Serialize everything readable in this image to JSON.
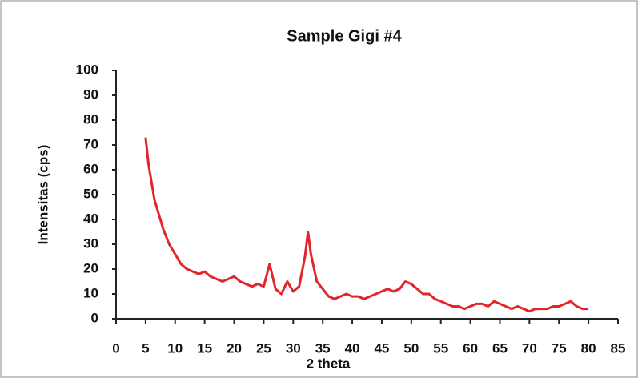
{
  "chart_data": {
    "type": "line",
    "title": "Sample Gigi #4",
    "x_label": "2 theta",
    "y_label": "Intensitas (cps)",
    "x": [
      5,
      5.5,
      6,
      6.5,
      7,
      7.5,
      8,
      9,
      10,
      11,
      12,
      13,
      14,
      15,
      16,
      17,
      18,
      19,
      20,
      21,
      22,
      23,
      24,
      25,
      26,
      27,
      28,
      29,
      30,
      31,
      32,
      32.5,
      33,
      34,
      35,
      36,
      37,
      38,
      39,
      40,
      41,
      42,
      43,
      44,
      45,
      46,
      47,
      48,
      49,
      50,
      51,
      52,
      53,
      54,
      55,
      56,
      57,
      58,
      59,
      60,
      61,
      62,
      63,
      64,
      65,
      66,
      67,
      68,
      69,
      70,
      71,
      72,
      73,
      74,
      75,
      76,
      77,
      78,
      79,
      80
    ],
    "values": [
      73,
      62,
      55,
      48,
      44,
      40,
      36,
      30,
      26,
      22,
      20,
      19,
      18,
      19,
      17,
      16,
      15,
      16,
      17,
      15,
      14,
      13,
      14,
      13,
      22,
      12,
      10,
      15,
      11,
      13,
      25,
      35,
      26,
      15,
      12,
      9,
      8,
      9,
      10,
      9,
      9,
      8,
      9,
      10,
      11,
      12,
      11,
      12,
      15,
      14,
      12,
      10,
      10,
      8,
      7,
      6,
      5,
      5,
      4,
      5,
      6,
      6,
      5,
      7,
      6,
      5,
      4,
      5,
      4,
      3,
      4,
      4,
      4,
      5,
      5,
      6,
      7,
      5,
      4,
      4
    ],
    "color": "#e0262a",
    "xlim": [
      0,
      85
    ],
    "xticks": [
      0,
      5,
      10,
      15,
      20,
      25,
      30,
      35,
      40,
      45,
      50,
      55,
      60,
      65,
      70,
      75,
      80,
      85
    ],
    "ylim": [
      0,
      100
    ],
    "yticks": [
      0,
      10,
      20,
      30,
      40,
      50,
      60,
      70,
      80,
      90,
      100
    ],
    "grid": false
  }
}
